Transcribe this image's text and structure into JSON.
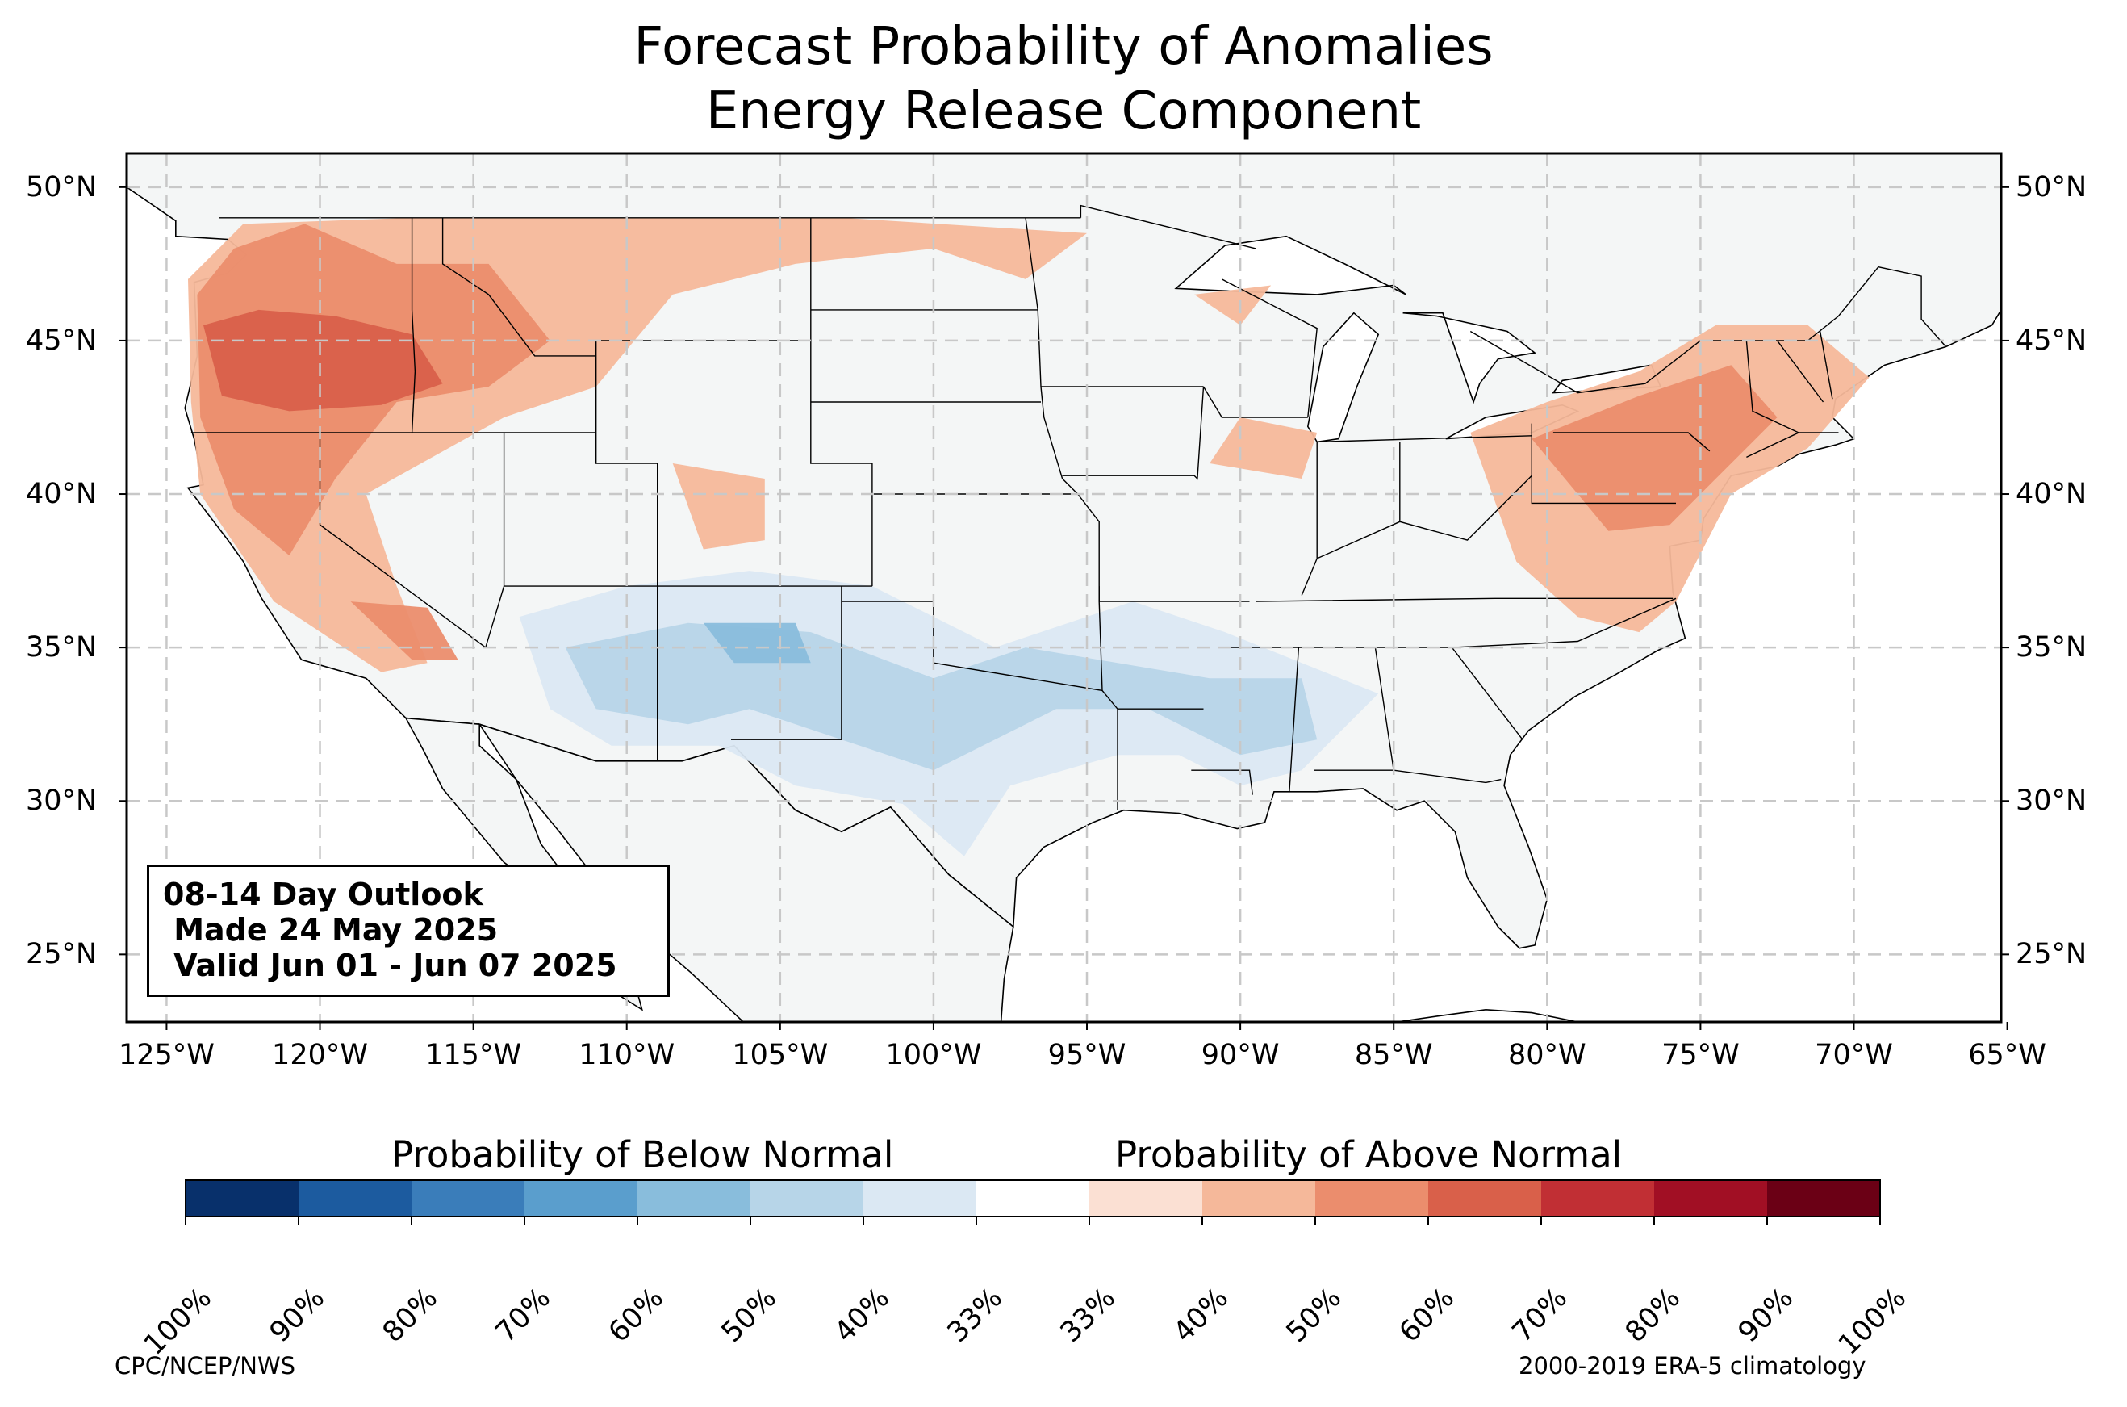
{
  "title": {
    "line1": "Forecast Probability of Anomalies",
    "line2": "Energy Release Component"
  },
  "map": {
    "projection": "plate-carree",
    "lon_range": [
      -126.3,
      -65.2
    ],
    "lat_range": [
      22.8,
      51.1
    ],
    "land_color": "#f4f6f6",
    "grid_style": "dashed",
    "lat_labels": [
      "50°N",
      "45°N",
      "40°N",
      "35°N",
      "30°N",
      "25°N"
    ],
    "lon_labels": [
      "125°W",
      "120°W",
      "115°W",
      "110°W",
      "105°W",
      "100°W",
      "95°W",
      "90°W",
      "85°W",
      "80°W",
      "75°W",
      "70°W",
      "65°W"
    ]
  },
  "info_box": {
    "line1": "08-14 Day Outlook",
    "line2": " Made 24 May 2025",
    "line3": " Valid Jun 01 - Jun 07 2025"
  },
  "colorbar": {
    "below_heading": "Probability of Below Normal",
    "above_heading": "Probability of Above Normal",
    "tick_labels": [
      "100%",
      "90%",
      "80%",
      "70%",
      "60%",
      "50%",
      "40%",
      "33%",
      "33%",
      "40%",
      "50%",
      "60%",
      "70%",
      "80%",
      "90%",
      "100%"
    ],
    "colors": [
      "#08306b",
      "#1c5b9f",
      "#3a7dba",
      "#5a9ecd",
      "#89bddc",
      "#b7d5e8",
      "#dbe8f3",
      "#ffffff",
      "#fbe0d3",
      "#f5b89a",
      "#eb8d6d",
      "#d9604a",
      "#c12f34",
      "#a10f24",
      "#6b0015"
    ]
  },
  "footer": {
    "left": "CPC/NCEP/NWS",
    "right": "2000-2019 ERA-5 climatology"
  }
}
